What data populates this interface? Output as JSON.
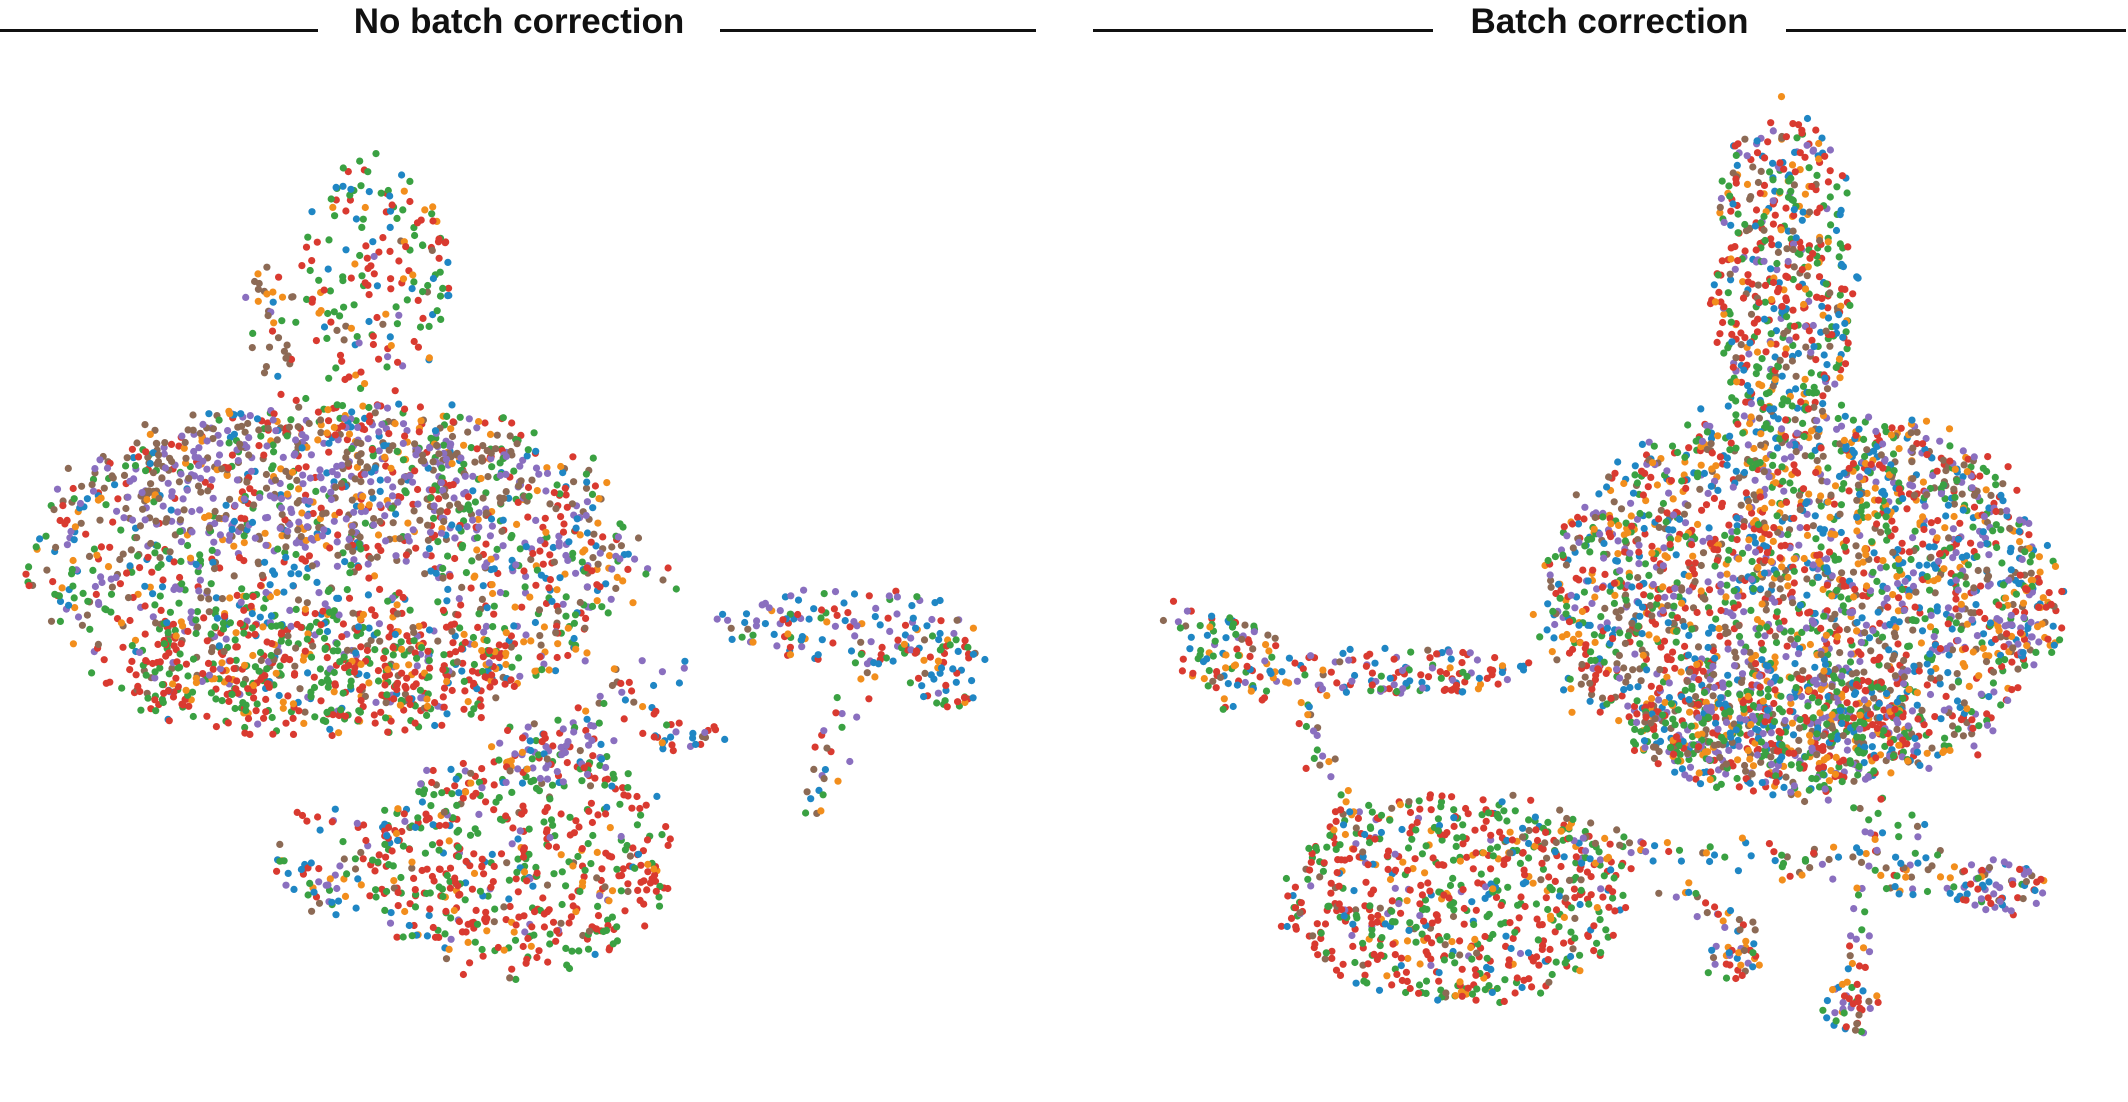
{
  "chart_data": [
    {
      "type": "scatter",
      "title": "No batch correction",
      "xlabel": "",
      "ylabel": "",
      "grid": false,
      "legend": "none",
      "axes_visible": false,
      "batch_colors": [
        "#1f86c4",
        "#f28e1c",
        "#3aa142",
        "#d93a30",
        "#8a6fbf",
        "#8c6a55"
      ],
      "clusters": [
        {
          "name": "",
          "cx": 0.36,
          "cy": 0.22,
          "rx": 0.075,
          "ry": 0.13,
          "density": 180,
          "mix": [
            0.18,
            0.12,
            0.32,
            0.3,
            0.03,
            0.05
          ]
        },
        {
          "name": "",
          "cx": 0.255,
          "cy": 0.27,
          "rx": 0.03,
          "ry": 0.06,
          "density": 35,
          "mix": [
            0.1,
            0.25,
            0.05,
            0.05,
            0.05,
            0.5
          ]
        },
        {
          "name": "",
          "cx": 0.32,
          "cy": 0.52,
          "rx": 0.29,
          "ry": 0.17,
          "density": 1400,
          "mix": [
            0.12,
            0.1,
            0.2,
            0.22,
            0.18,
            0.18
          ]
        },
        {
          "name": "",
          "cx": 0.3,
          "cy": 0.44,
          "rx": 0.22,
          "ry": 0.07,
          "density": 420,
          "mix": [
            0.05,
            0.05,
            0.05,
            0.05,
            0.45,
            0.35
          ]
        },
        {
          "name": "",
          "cx": 0.3,
          "cy": 0.64,
          "rx": 0.2,
          "ry": 0.07,
          "density": 380,
          "mix": [
            0.05,
            0.1,
            0.3,
            0.5,
            0.02,
            0.03
          ]
        },
        {
          "name": "",
          "cx": 0.5,
          "cy": 0.84,
          "rx": 0.15,
          "ry": 0.12,
          "density": 520,
          "mix": [
            0.06,
            0.05,
            0.3,
            0.47,
            0.08,
            0.04
          ]
        },
        {
          "name": "",
          "cx": 0.54,
          "cy": 0.72,
          "rx": 0.06,
          "ry": 0.04,
          "density": 60,
          "mix": [
            0.15,
            0.05,
            0.1,
            0.1,
            0.55,
            0.05
          ]
        },
        {
          "name": "",
          "cx": 0.82,
          "cy": 0.59,
          "rx": 0.13,
          "ry": 0.04,
          "density": 130,
          "mix": [
            0.28,
            0.08,
            0.12,
            0.18,
            0.3,
            0.04
          ]
        },
        {
          "name": "",
          "cx": 0.92,
          "cy": 0.64,
          "rx": 0.04,
          "ry": 0.04,
          "density": 50,
          "mix": [
            0.2,
            0.1,
            0.25,
            0.35,
            0.05,
            0.05
          ]
        },
        {
          "name": "",
          "cx": 0.31,
          "cy": 0.84,
          "rx": 0.05,
          "ry": 0.06,
          "density": 45,
          "mix": [
            0.3,
            0.1,
            0.2,
            0.2,
            0.15,
            0.05
          ]
        },
        {
          "name": "",
          "cx": 0.66,
          "cy": 0.71,
          "rx": 0.04,
          "ry": 0.015,
          "density": 25,
          "mix": [
            0.2,
            0.1,
            0.2,
            0.3,
            0.1,
            0.1
          ]
        }
      ],
      "trails": [
        {
          "from": [
            0.28,
            0.88
          ],
          "to": [
            0.66,
            0.63
          ],
          "density": 70
        },
        {
          "from": [
            0.55,
            0.6
          ],
          "to": [
            0.64,
            0.7
          ],
          "density": 20
        },
        {
          "from": [
            0.81,
            0.72
          ],
          "to": [
            0.78,
            0.79
          ],
          "density": 15
        },
        {
          "from": [
            0.86,
            0.62
          ],
          "to": [
            0.77,
            0.75
          ],
          "density": 15
        },
        {
          "from": [
            0.6,
            0.5
          ],
          "to": [
            0.65,
            0.55
          ],
          "density": 8
        }
      ]
    },
    {
      "type": "scatter",
      "title": "Batch correction",
      "xlabel": "",
      "ylabel": "",
      "grid": false,
      "legend": "none",
      "axes_visible": false,
      "batch_colors": [
        "#1f86c4",
        "#f28e1c",
        "#3aa142",
        "#d93a30",
        "#8a6fbf",
        "#8c6a55"
      ],
      "clusters": [
        {
          "name": "",
          "cx": 0.67,
          "cy": 0.22,
          "rx": 0.07,
          "ry": 0.18,
          "density": 520,
          "mix": [
            0.16,
            0.12,
            0.22,
            0.3,
            0.1,
            0.1
          ]
        },
        {
          "name": "",
          "cx": 0.69,
          "cy": 0.56,
          "rx": 0.25,
          "ry": 0.2,
          "density": 2400,
          "mix": [
            0.16,
            0.14,
            0.18,
            0.22,
            0.16,
            0.14
          ]
        },
        {
          "name": "",
          "cx": 0.66,
          "cy": 0.7,
          "rx": 0.14,
          "ry": 0.07,
          "density": 380,
          "mix": [
            0.12,
            0.1,
            0.28,
            0.2,
            0.2,
            0.1
          ]
        },
        {
          "name": "",
          "cx": 0.13,
          "cy": 0.63,
          "rx": 0.05,
          "ry": 0.05,
          "density": 90,
          "mix": [
            0.2,
            0.15,
            0.25,
            0.25,
            0.1,
            0.05
          ]
        },
        {
          "name": "",
          "cx": 0.29,
          "cy": 0.64,
          "rx": 0.13,
          "ry": 0.025,
          "density": 130,
          "mix": [
            0.18,
            0.1,
            0.15,
            0.3,
            0.22,
            0.05
          ]
        },
        {
          "name": "",
          "cx": 0.35,
          "cy": 0.88,
          "rx": 0.17,
          "ry": 0.11,
          "density": 650,
          "mix": [
            0.08,
            0.1,
            0.3,
            0.44,
            0.04,
            0.04
          ]
        },
        {
          "name": "",
          "cx": 0.88,
          "cy": 0.87,
          "rx": 0.05,
          "ry": 0.03,
          "density": 70,
          "mix": [
            0.15,
            0.05,
            0.1,
            0.25,
            0.35,
            0.1
          ]
        },
        {
          "name": "",
          "cx": 0.62,
          "cy": 0.95,
          "rx": 0.03,
          "ry": 0.02,
          "density": 30,
          "mix": [
            0.15,
            0.15,
            0.2,
            0.3,
            0.1,
            0.1
          ]
        },
        {
          "name": "",
          "cx": 0.74,
          "cy": 1.0,
          "rx": 0.03,
          "ry": 0.03,
          "density": 40,
          "mix": [
            0.2,
            0.15,
            0.15,
            0.2,
            0.2,
            0.1
          ]
        }
      ],
      "trails": [
        {
          "from": [
            0.06,
            0.57
          ],
          "to": [
            0.12,
            0.6
          ],
          "density": 8
        },
        {
          "from": [
            0.38,
            0.82
          ],
          "to": [
            0.85,
            0.85
          ],
          "density": 110
        },
        {
          "from": [
            0.2,
            0.67
          ],
          "to": [
            0.25,
            0.82
          ],
          "density": 30
        },
        {
          "from": [
            0.76,
            0.77
          ],
          "to": [
            0.74,
            0.97
          ],
          "density": 35
        },
        {
          "from": [
            0.57,
            0.87
          ],
          "to": [
            0.64,
            0.92
          ],
          "density": 25
        },
        {
          "from": [
            0.8,
            0.8
          ],
          "to": [
            0.78,
            0.88
          ],
          "density": 20
        }
      ]
    }
  ]
}
